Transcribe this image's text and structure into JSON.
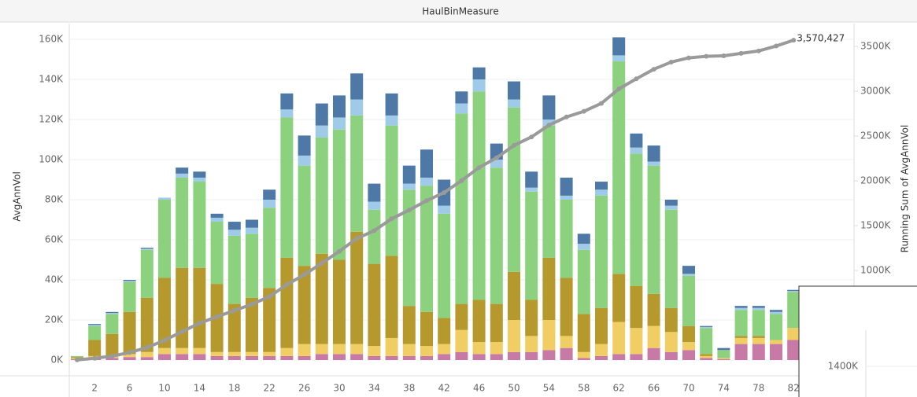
{
  "chart_data": {
    "type": "bar",
    "title": "HaulBinMeasure",
    "y_label": "AvgAnnVol",
    "y2_label": "Running Sum of AvgAnnVol",
    "categories": [
      null,
      "2",
      null,
      "6",
      null,
      "10",
      null,
      "14",
      null,
      "18",
      null,
      "22",
      null,
      "26",
      null,
      "30",
      null,
      "34",
      null,
      "38",
      null,
      "42",
      null,
      "46",
      null,
      "50",
      null,
      "54",
      null,
      "58",
      null,
      "62",
      null,
      "66",
      null,
      "70",
      null,
      "74",
      null,
      "78",
      null,
      "82"
    ],
    "ylim": [
      0,
      160000
    ],
    "yticks": [
      {
        "value": 0,
        "label": "0K"
      },
      {
        "value": 20000,
        "label": "20K"
      },
      {
        "value": 40000,
        "label": "40K"
      },
      {
        "value": 60000,
        "label": "60K"
      },
      {
        "value": 80000,
        "label": "80K"
      },
      {
        "value": 100000,
        "label": "100K"
      },
      {
        "value": 120000,
        "label": "120K"
      },
      {
        "value": 140000,
        "label": "140K"
      },
      {
        "value": 160000,
        "label": "160K"
      }
    ],
    "y2lim": [
      0,
      3580000
    ],
    "y2ticks": [
      {
        "value": 1000000,
        "label": "1000K"
      },
      {
        "value": 1500000,
        "label": "1500K"
      },
      {
        "value": 2000000,
        "label": "2000K"
      },
      {
        "value": 2500000,
        "label": "2500K"
      },
      {
        "value": 3000000,
        "label": "3000K"
      },
      {
        "value": 3500000,
        "label": "3500K"
      }
    ],
    "grid": true,
    "series": [
      {
        "color": "#c87aa6",
        "values": [
          500,
          1000,
          1000,
          1500,
          1500,
          3000,
          3000,
          3000,
          2000,
          2000,
          2000,
          2000,
          2000,
          2000,
          3000,
          3000,
          3000,
          2000,
          2000,
          2000,
          2000,
          3000,
          4000,
          3000,
          3000,
          4000,
          4000,
          5000,
          6000,
          1000,
          2000,
          3000,
          3000,
          6000,
          4000,
          5000,
          1000,
          500,
          8000,
          8000,
          8000,
          10000
        ]
      },
      {
        "color": "#f1ce63",
        "values": [
          500,
          1000,
          1000,
          1500,
          2500,
          3000,
          3000,
          3000,
          2000,
          2000,
          2000,
          2000,
          4000,
          6000,
          5000,
          5000,
          5000,
          5000,
          9000,
          6000,
          5000,
          5000,
          11000,
          6000,
          6000,
          16000,
          8000,
          15000,
          6000,
          3000,
          6000,
          16000,
          13000,
          11000,
          10000,
          4000,
          1000,
          500,
          3000,
          3000,
          2000,
          6000
        ]
      },
      {
        "color": "#b6992d",
        "values": [
          500,
          8000,
          11000,
          21000,
          27000,
          35000,
          40000,
          40000,
          34000,
          24000,
          27000,
          32000,
          45000,
          39000,
          45000,
          42000,
          56000,
          41000,
          41000,
          19000,
          17000,
          13000,
          13000,
          21000,
          19000,
          24000,
          18000,
          31000,
          29000,
          19000,
          18000,
          24000,
          21000,
          16000,
          12000,
          8000,
          1000,
          0,
          1000,
          1000,
          0,
          0
        ]
      },
      {
        "color": "#8cd17d",
        "values": [
          500,
          7000,
          10000,
          15000,
          24000,
          39000,
          45000,
          43000,
          31000,
          34000,
          32000,
          40000,
          70000,
          50000,
          58000,
          65000,
          58000,
          27000,
          65000,
          58000,
          63000,
          52000,
          95000,
          104000,
          68000,
          82000,
          54000,
          66000,
          39000,
          32000,
          56000,
          106000,
          66000,
          64000,
          49000,
          25000,
          13000,
          4000,
          13000,
          13000,
          13000,
          18000
        ]
      },
      {
        "color": "#a0cbe8",
        "values": [
          0,
          500,
          500,
          500,
          500,
          1000,
          2000,
          2000,
          2000,
          3000,
          3000,
          4000,
          4000,
          5000,
          6000,
          6000,
          8000,
          4000,
          5000,
          3000,
          4000,
          4000,
          5000,
          6000,
          4000,
          4000,
          2000,
          3000,
          2000,
          3000,
          3000,
          3000,
          3000,
          2000,
          2000,
          1000,
          500,
          0,
          1000,
          1000,
          1000,
          500
        ]
      },
      {
        "color": "#4e79a7",
        "values": [
          0,
          500,
          500,
          500,
          500,
          0,
          3000,
          3000,
          2000,
          4000,
          4000,
          5000,
          8000,
          10000,
          11000,
          11000,
          13000,
          9000,
          11000,
          9000,
          14000,
          13000,
          6000,
          6000,
          8000,
          9000,
          8000,
          12000,
          9000,
          5000,
          4000,
          9000,
          7000,
          8000,
          3000,
          4000,
          500,
          1000,
          1000,
          1000,
          1000,
          500
        ]
      },
      {
        "type": "line",
        "axis": "y2",
        "color": "#9a9a9a",
        "values": [
          2000,
          20000,
          44000,
          84000,
          140000,
          221000,
          317000,
          411000,
          484000,
          553000,
          623000,
          708000,
          841000,
          953000,
          1081000,
          1213000,
          1356000,
          1444000,
          1577000,
          1674000,
          1779000,
          1869000,
          2003000,
          2149000,
          2257000,
          2396000,
          2490000,
          2622000,
          2713000,
          2776000,
          2865000,
          3026000,
          3139000,
          3246000,
          3326000,
          3373000,
          3390000,
          3396000,
          3423000,
          3450000,
          3505000,
          3570427
        ],
        "value_labels": [
          null,
          null,
          null,
          null,
          null,
          null,
          null,
          null,
          null,
          null,
          null,
          null,
          null,
          null,
          null,
          null,
          null,
          null,
          null,
          null,
          null,
          null,
          null,
          null,
          null,
          null,
          null,
          null,
          null,
          null,
          null,
          null,
          null,
          null,
          null,
          null,
          null,
          null,
          null,
          null,
          null,
          "3,570,427"
        ]
      }
    ]
  },
  "overlay": {
    "label": "1400K"
  }
}
